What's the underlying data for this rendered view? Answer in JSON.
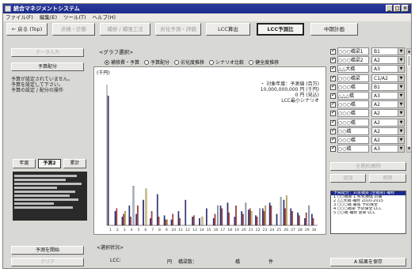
{
  "window": {
    "title": "統合マネジメントシステム",
    "controls": [
      "_",
      "□",
      "×"
    ]
  },
  "menu": [
    "ファイル(F)",
    "編集(E)",
    "ツール(T)",
    "ヘルプ(H)"
  ],
  "toolbar": {
    "back": "← 戻る (Top)",
    "b2": "点検・診断",
    "b3": "補修 / 補強工法",
    "b4": "劣化予測・評価",
    "lcc_calc": "LCC算出",
    "lcc_predict": "LCC予測比",
    "midterm": "中期計画"
  },
  "left_panel": {
    "top_button": "データ入力",
    "sub_button": "予算配分",
    "message": [
      "予算が設定されていません。",
      "予算を設定して下さい。",
      "予算の設定 / 配分の操作"
    ],
    "period_buttons": [
      "年度",
      "予測2",
      "累計"
    ],
    "selected_period": 1,
    "start_button": "予測を開始",
    "bottom_button": "クリア"
  },
  "graph": {
    "section_label": "<グラフ選択>",
    "radio_options": [
      "補修費・予算",
      "予算配分",
      "劣化度推移",
      "シナリオ比較",
      "健全度推移"
    ],
    "selected_radio": 0,
    "y_unit": "(千円)",
    "legend_lines": [
      "・ 対象年度：予測値 (百万)",
      "10,000,000,000 円 (千円)",
      "0 円 (見込)",
      "LCC最小シナリオ"
    ],
    "bottom_label": "<選択状況>",
    "lcc_label": "LCC:",
    "yen_label": "円",
    "bridge_label": "橋梁数：",
    "unit_label": "橋",
    "count_label": "件"
  },
  "right_panel": {
    "rows": [
      {
        "checked": true,
        "name": "○○○橋梁1",
        "value": "B1"
      },
      {
        "checked": true,
        "name": "○○○橋梁2",
        "value": "A2"
      },
      {
        "checked": true,
        "name": "△△大橋",
        "value": "A3"
      },
      {
        "checked": true,
        "name": "○○○橋梁",
        "value": "C1/A2"
      },
      {
        "checked": true,
        "name": "○○○橋",
        "value": "B1"
      },
      {
        "checked": true,
        "name": "△△△橋",
        "value": "A3"
      },
      {
        "checked": true,
        "name": "○○○橋",
        "value": "A2"
      },
      {
        "checked": true,
        "name": "○○○橋",
        "value": "A2"
      },
      {
        "checked": true,
        "name": "○○○橋",
        "value": "A2"
      },
      {
        "checked": true,
        "name": "○○橋",
        "value": "A2"
      },
      {
        "checked": true,
        "name": "○○○橋",
        "value": "A2"
      },
      {
        "checked": true,
        "name": "○○橋",
        "value": "A3"
      }
    ],
    "buttons": [
      "全選択/解除",
      "追加",
      "削除"
    ],
    "list_items": [
      "予算配分：対象橋梁 (全橋梁) 補修",
      "1 ○○橋梁 1 劣化損傷  対策",
      "2 △△大橋  補修 2010-2015",
      "3 ○○○橋  補強 予防保全",
      "4 ○○○橋梁  予防保全 LCC",
      "5 ○○橋  補修 更新 LCC"
    ],
    "save_button": "A 結果を保存"
  },
  "colors": {
    "titlebar": "#1b2c8a",
    "tall_bar": "#2b2f8f",
    "series": [
      "#2b2f8f",
      "#d23c3c",
      "#e8c95a",
      "#9fb4d8",
      "#7a3c8a",
      "#3a8a4a",
      "#e88a40"
    ]
  },
  "chart_data": {
    "type": "bar",
    "y_unit": "(千円)",
    "ylim": [
      0,
      100
    ],
    "grid": false,
    "categories": [
      "1",
      "2",
      "3",
      "4",
      "5",
      "6",
      "7",
      "8",
      "9",
      "10",
      "11",
      "12",
      "13",
      "14",
      "15",
      "16",
      "17",
      "18",
      "19",
      "20",
      "21",
      "22",
      "23",
      "24",
      "25",
      "26",
      "27",
      "28",
      "29",
      "30"
    ],
    "series": [
      {
        "color": "#2b2f8f",
        "values": [
          92,
          10,
          6,
          14,
          8,
          18,
          5,
          22,
          7,
          4,
          10,
          18,
          6,
          5,
          12,
          5,
          14,
          16,
          6,
          10,
          11,
          7,
          12,
          16,
          8,
          18,
          12,
          9,
          5,
          8
        ]
      },
      {
        "color": "#d23c3c",
        "values": [
          0,
          12,
          8,
          6,
          14,
          0,
          10,
          6,
          4,
          8,
          5,
          0,
          7,
          0,
          0,
          8,
          12,
          9,
          14,
          8,
          12,
          6,
          10,
          14,
          0,
          12,
          10,
          7,
          9,
          5
        ]
      },
      {
        "color": "#e8c95a",
        "values": [
          0,
          0,
          10,
          0,
          0,
          26,
          0,
          0,
          4,
          0,
          0,
          0,
          0,
          6,
          0,
          0,
          0,
          0,
          0,
          0,
          10,
          0,
          14,
          0,
          0,
          21,
          0,
          0,
          0,
          0
        ]
      },
      {
        "color": "#9fb4d8",
        "values": [
          0,
          0,
          0,
          28,
          0,
          0,
          0,
          0,
          0,
          0,
          0,
          0,
          0,
          0,
          0,
          14,
          0,
          0,
          0,
          16,
          0,
          12,
          0,
          0,
          20,
          0,
          0,
          0,
          14,
          0
        ]
      }
    ]
  }
}
